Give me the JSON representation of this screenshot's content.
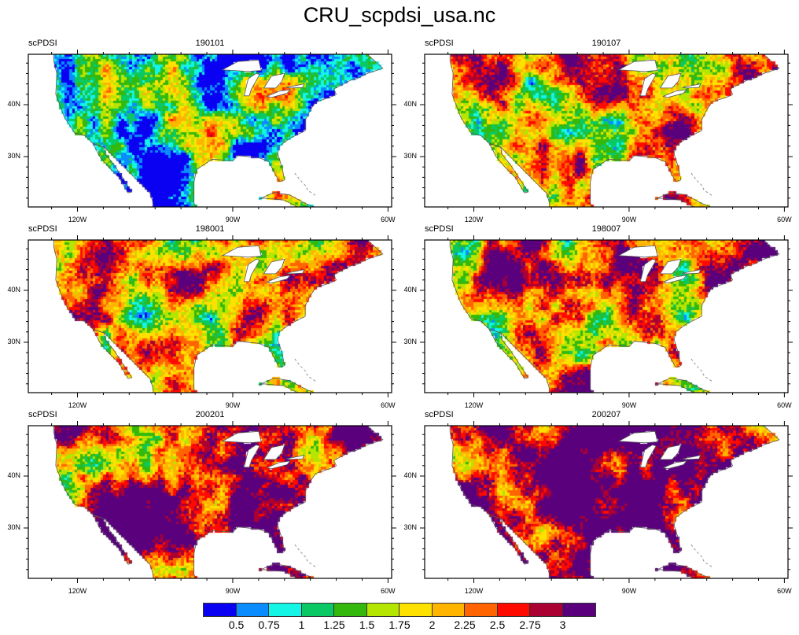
{
  "title": "CRU_scpdsi_usa.nc",
  "chart_data": {
    "type": "heatmap",
    "title": "CRU_scpdsi_usa.nc",
    "variable": "scPDSI",
    "panels": [
      {
        "variable": "scPDSI",
        "date": "190101"
      },
      {
        "variable": "scPDSI",
        "date": "190107"
      },
      {
        "variable": "scPDSI",
        "date": "198001"
      },
      {
        "variable": "scPDSI",
        "date": "198007"
      },
      {
        "variable": "scPDSI",
        "date": "200201"
      },
      {
        "variable": "scPDSI",
        "date": "200207"
      }
    ],
    "lon_range": [
      -129.5,
      -59.3
    ],
    "lat_range": [
      20.3,
      49.7
    ],
    "x_tick_labels": [
      "120W",
      "90W",
      "60W"
    ],
    "y_tick_labels": [
      "30N",
      "40N"
    ],
    "colorbar": {
      "levels": [
        "0.5",
        "0.75",
        "1",
        "1.25",
        "1.5",
        "1.75",
        "2",
        "2.25",
        "2.5",
        "2.75",
        "3"
      ],
      "colors": [
        "#0a00f2",
        "#0a8cff",
        "#14f5e6",
        "#0ac864",
        "#34b80c",
        "#b4e600",
        "#ffe100",
        "#ffb400",
        "#ff6400",
        "#ff0a00",
        "#aa0032",
        "#5a007d"
      ]
    }
  }
}
